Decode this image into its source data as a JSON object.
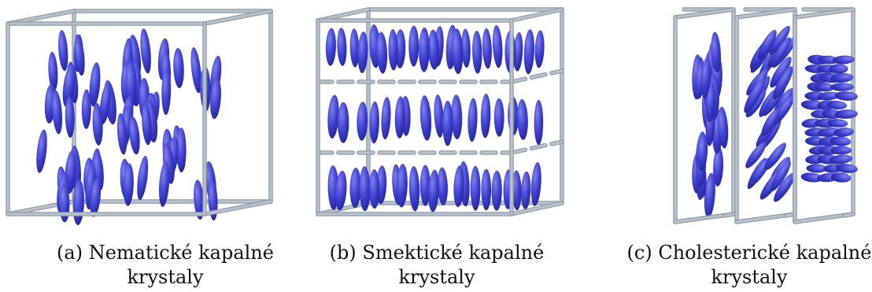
{
  "figure": {
    "panels": [
      {
        "id": "a",
        "caption_line1": "(a) Nematické kapalné",
        "caption_line2": "krystaly",
        "arrangement": "nematic"
      },
      {
        "id": "b",
        "caption_line1": "(b) Smektické kapalné",
        "caption_line2": "krystaly",
        "arrangement": "smectic"
      },
      {
        "id": "c",
        "caption_line1": "(c) Cholesterické kapalné",
        "caption_line2": "krystaly",
        "arrangement": "cholesteric"
      }
    ],
    "colors": {
      "molecule": "#3d3fd0",
      "molecule_highlight": "#7f81ee",
      "molecule_shadow": "#22238f",
      "frame": "#b7c1cc",
      "frame_edge": "#8f9aa6"
    }
  }
}
